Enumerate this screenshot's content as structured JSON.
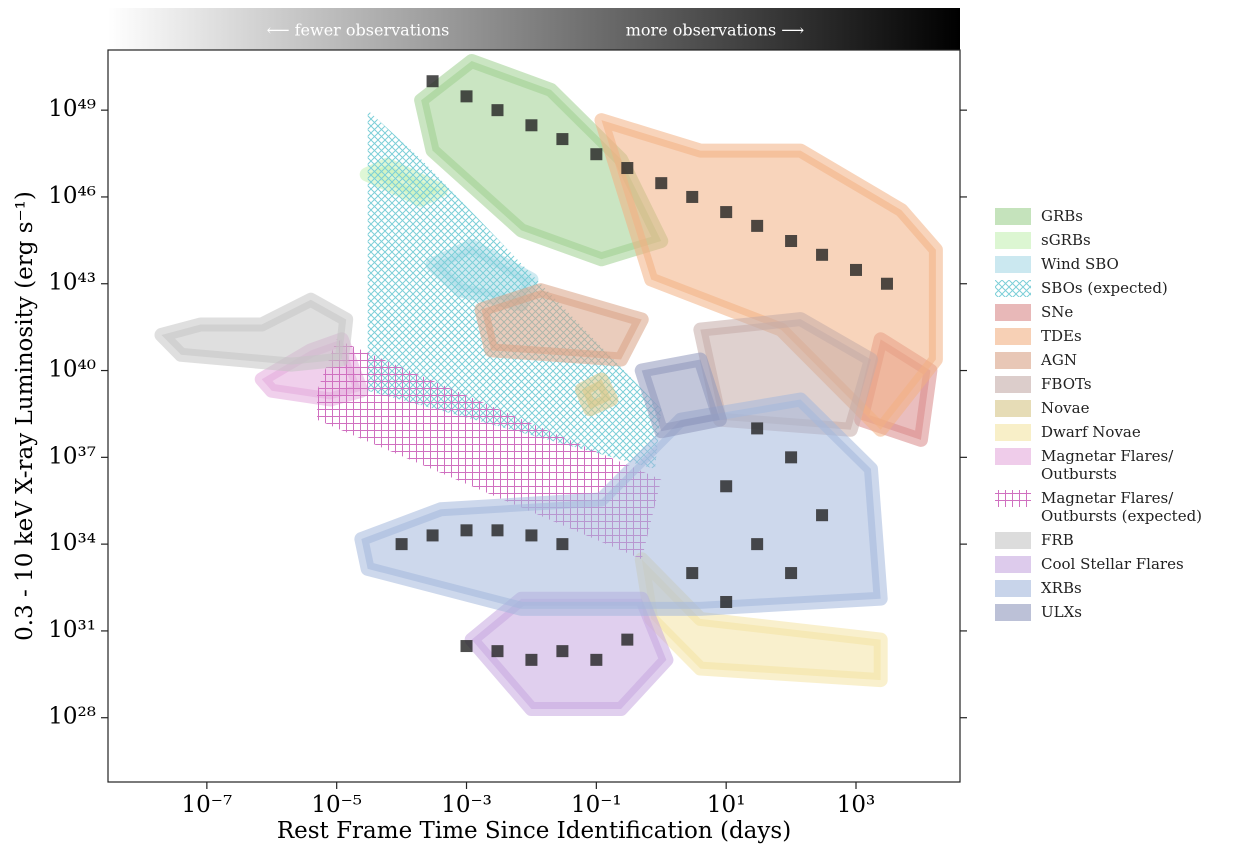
{
  "chart_data": {
    "type": "region",
    "xlabel": "Rest Frame Time Since Identification (days)",
    "ylabel": "0.3 - 10 keV X-ray Luminosity (erg s⁻¹)",
    "xscale": "log",
    "yscale": "log",
    "xlim": [
      3e-09,
      40000.0
    ],
    "ylim": [
      6e+25,
      1.2e+51
    ],
    "xticks": [
      {
        "value": 1e-07,
        "label": "10⁻⁷"
      },
      {
        "value": 1e-05,
        "label": "10⁻⁵"
      },
      {
        "value": 0.001,
        "label": "10⁻³"
      },
      {
        "value": 0.1,
        "label": "10⁻¹"
      },
      {
        "value": 10,
        "label": "10¹"
      },
      {
        "value": 1000,
        "label": "10³"
      }
    ],
    "yticks": [
      {
        "value": 1e+28,
        "label": "10²⁸"
      },
      {
        "value": 1e+31,
        "label": "10³¹"
      },
      {
        "value": 1e+34,
        "label": "10³⁴"
      },
      {
        "value": 1e+37,
        "label": "10³⁷"
      },
      {
        "value": 1e+40,
        "label": "10⁴⁰"
      },
      {
        "value": 1e+43,
        "label": "10⁴³"
      },
      {
        "value": 1e+46,
        "label": "10⁴⁶"
      },
      {
        "value": 1e+49,
        "label": "10⁴⁹"
      }
    ],
    "colorbar": {
      "colors": [
        "#ffffff",
        "#000000"
      ],
      "low_label": "⟵ fewer observations",
      "high_label": "more observations ⟶"
    },
    "legend": "right",
    "series": [
      {
        "name": "GRBs",
        "color": "#9fd08f",
        "x": [
          0.0002,
          0.0012,
          0.02,
          0.24,
          1,
          0.12,
          0.007,
          0.0003
        ],
        "y": [
          2.2e+49,
          5e+50,
          5e+49,
          2e+47,
          3e+44,
          7e+43,
          7e+44,
          4e+47
        ]
      },
      {
        "name": "sGRBs",
        "color": "#c4f0b4",
        "x": [
          2.9e-05,
          6e-05,
          0.0004,
          0.0002
        ],
        "y": [
          6e+46,
          1.3e+47,
          1.7e+46,
          8e+45
        ]
      },
      {
        "name": "Wind SBO",
        "color": "#a8d8e6",
        "x": [
          0.0003,
          0.0012,
          0.01,
          0.007,
          0.0008
        ],
        "y": [
          4.6e+43,
          2e+44,
          1.4e+43,
          1.9e+42,
          6e+42
        ]
      },
      {
        "name": "SBOs (expected)",
        "color": "#7ccfd8",
        "hatch": "x",
        "x": [
          3e-05,
          0.0002,
          1,
          0.8,
          3e-05
        ],
        "y": [
          1e+49,
          2e+47,
          4.6e+38,
          4e+36,
          2e+39
        ]
      },
      {
        "name": "SNe",
        "color": "#d98888",
        "x": [
          2400,
          14000,
          10000,
          1200
        ],
        "y": [
          1.2e+41,
          1e+40,
          4e+37,
          2e+38
        ]
      },
      {
        "name": "TDEs",
        "color": "#f2b183",
        "x": [
          0.12,
          4,
          140,
          5000,
          17000,
          17000,
          2400,
          70,
          0.7
        ],
        "y": [
          4.5e+48,
          4e+47,
          4e+47,
          3.5e+45,
          1.5e+44,
          2.4e+40,
          9e+37,
          2.6e+41,
          1.4e+43
        ]
      },
      {
        "name": "AGN",
        "color": "#d8a285",
        "x": [
          0.0017,
          0.014,
          0.5,
          0.24,
          0.0024
        ],
        "y": [
          1.3e+42,
          6e+42,
          5.8e+41,
          2.4e+40,
          5e+40
        ]
      },
      {
        "name": "FBOTs",
        "color": "#c4aca8",
        "x": [
          4,
          140,
          1700,
          830,
          8
        ],
        "y": [
          2.6e+41,
          6e+41,
          2.4e+40,
          9e+37,
          2e+38
        ]
      },
      {
        "name": "Novae",
        "color": "#d6c585",
        "x": [
          0.06,
          0.12,
          0.17,
          0.08
        ],
        "y": [
          2.2e+39,
          4.9e+39,
          1e+39,
          4.6e+38
        ]
      },
      {
        "name": "Dwarf Novae",
        "color": "#f4e4a4",
        "x": [
          0.5,
          4,
          2400,
          2400,
          4,
          0.7
        ],
        "y": [
          3e+33,
          2.6e+31,
          5e+30,
          2e+29,
          5e+29,
          2.6e+31
        ]
      },
      {
        "name": "Magnetar Flares/\nOutbursts",
        "color": "#e4aadc",
        "x": [
          7e-07,
          4e-06,
          1.2e-05,
          2.4e-05,
          8e-06,
          1e-06
        ],
        "y": [
          5e+39,
          5e+40,
          1.2e+41,
          2e+39,
          1e+39,
          2e+39
        ]
      },
      {
        "name": "Magnetar Flares/\nOutbursts (expected)",
        "color": "#d070c0",
        "hatch": "+",
        "x": [
          5e-06,
          1e-05,
          1,
          0.5,
          5e-06
        ],
        "y": [
          2e+39,
          1.2e+41,
          1.7e+36,
          3e+33,
          2e+38
        ]
      },
      {
        "name": "FRB",
        "color": "#c4c4c4",
        "x": [
          2e-08,
          8e-08,
          7e-07,
          4e-06,
          1.4e-05,
          1.2e-05,
          2e-06,
          4e-08
        ],
        "y": [
          1.7e+41,
          3.9e+41,
          3.9e+41,
          2.8e+42,
          5.8e+41,
          2.4e+40,
          1.6e+40,
          3.5e+40
        ]
      },
      {
        "name": "Cool Stellar Flares",
        "color": "#c6a8e0",
        "x": [
          0.0012,
          0.007,
          0.5,
          1.2,
          0.24,
          0.01
        ],
        "y": [
          5e+30,
          1.3e+32,
          1.3e+32,
          1e+30,
          2e+28,
          2e+28
        ]
      },
      {
        "name": "XRBs",
        "color": "#a4b8dc",
        "x": [
          2.4e-05,
          0.0004,
          0.12,
          2,
          140,
          1700,
          2400,
          4,
          0.007,
          3e-05
        ],
        "y": [
          1.5e+34,
          1.6e+35,
          3.5e+35,
          2e+38,
          1e+39,
          4e+36,
          1.3e+32,
          5.8e+31,
          5.8e+31,
          1.4e+33
        ]
      },
      {
        "name": "ULXs",
        "color": "#9098bc",
        "x": [
          0.5,
          4,
          8,
          1
        ],
        "y": [
          1e+40,
          2.4e+40,
          2e+38,
          8e+37
        ]
      }
    ],
    "observations": {
      "x": [
        0.0003,
        0.001,
        0.003,
        0.01,
        0.03,
        0.1,
        0.3,
        1,
        3,
        10,
        30,
        100,
        300,
        1000,
        3000,
        0.0001,
        0.0003,
        0.001,
        0.003,
        0.01,
        0.03,
        0.001,
        0.003,
        0.01,
        0.03,
        0.1,
        0.3,
        3,
        10,
        30,
        100,
        300,
        10,
        30,
        100
      ],
      "y": [
        1e+50,
        3e+49,
        1e+49,
        3e+48,
        1e+48,
        3e+47,
        1e+47,
        3e+46,
        1e+46,
        3e+45,
        1e+45,
        3e+44,
        1e+44,
        3e+43,
        1e+43,
        1e+34,
        2e+34,
        3e+34,
        3e+34,
        2e+34,
        1e+34,
        3e+30,
        2e+30,
        1e+30,
        2e+30,
        1e+30,
        5e+30,
        1e+33,
        1e+32,
        1e+34,
        1e+33,
        1e+35,
        1e+36,
        1e+38,
        1e+37
      ]
    }
  }
}
